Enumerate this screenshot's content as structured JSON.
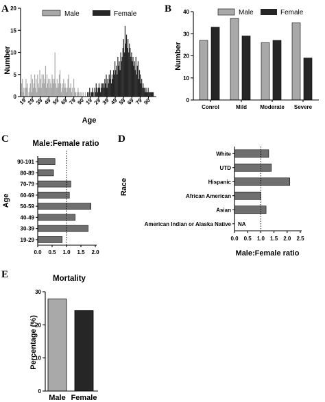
{
  "colors": {
    "male": "#a9a9a9",
    "female": "#262626",
    "ratio": "#6f6f6f"
  },
  "chart_data": [
    {
      "panel": "A",
      "type": "bar",
      "xlabel": "Age",
      "ylabel": "Number",
      "ylim": [
        0,
        20
      ],
      "yticks": [
        0,
        5,
        10,
        15,
        20
      ],
      "legend": "top",
      "x_ticks": [
        "19",
        "29",
        "39",
        "49",
        "59",
        "69",
        "79",
        "90",
        "19",
        "29",
        "39",
        "49",
        "59",
        "69",
        "79",
        "90"
      ],
      "series": [
        {
          "name": "Male",
          "ages": "19-90",
          "values": [
            1,
            3,
            4,
            1,
            2,
            0,
            2,
            4,
            2,
            3,
            0,
            1,
            2,
            3,
            5,
            1,
            4,
            2,
            3,
            5,
            2,
            4,
            1,
            5,
            3,
            2,
            6,
            4,
            2,
            5,
            3,
            5,
            3,
            4,
            7,
            2,
            5,
            3,
            4,
            2,
            4,
            3,
            2,
            5,
            4,
            3,
            4,
            10,
            3,
            2,
            4,
            2,
            3,
            5,
            6,
            3,
            1,
            2,
            3,
            4,
            2,
            3,
            2,
            1,
            2,
            4,
            5,
            2,
            2,
            3,
            1,
            2,
            0,
            4,
            2,
            1,
            1,
            0,
            1,
            2,
            1,
            0,
            1,
            0,
            1,
            0,
            1,
            0,
            0,
            1,
            0,
            0
          ]
        },
        {
          "name": "Female",
          "ages": "19-90",
          "values": [
            1,
            0,
            1,
            2,
            0,
            1,
            1,
            2,
            1,
            0,
            2,
            1,
            3,
            2,
            1,
            2,
            3,
            2,
            1,
            3,
            2,
            3,
            3,
            2,
            4,
            3,
            5,
            2,
            4,
            3,
            5,
            4,
            6,
            3,
            5,
            4,
            6,
            5,
            8,
            6,
            7,
            5,
            9,
            7,
            8,
            6,
            10,
            8,
            9,
            11,
            13,
            10,
            16,
            12,
            14,
            11,
            13,
            10,
            12,
            11,
            9,
            10,
            8,
            9,
            7,
            8,
            6,
            9,
            5,
            7,
            8,
            4,
            6,
            5,
            3,
            4,
            2,
            3,
            2,
            2,
            1,
            2,
            1,
            1,
            2,
            1,
            1,
            1,
            1,
            1,
            1,
            1
          ]
        }
      ]
    },
    {
      "panel": "B",
      "type": "bar",
      "xlabel": "",
      "ylabel": "Number",
      "ylim": [
        0,
        40
      ],
      "yticks": [
        0,
        10,
        20,
        30,
        40
      ],
      "legend": "top",
      "categories": [
        "Conrol",
        "Mild",
        "Moderate",
        "Severe"
      ],
      "series": [
        {
          "name": "Male",
          "values": [
            27,
            37,
            26,
            35
          ]
        },
        {
          "name": "Female",
          "values": [
            33,
            29,
            27,
            19
          ]
        }
      ]
    },
    {
      "panel": "C",
      "type": "bar",
      "orientation": "horizontal",
      "title": "Male:Female ratio",
      "xlabel": "",
      "ylabel": "Age",
      "xlim": [
        0,
        2
      ],
      "xticks": [
        "0.0",
        "0.5",
        "1.0",
        "1.5",
        "2.0"
      ],
      "reference_line": 1.0,
      "categories": [
        "90-101",
        "80-89",
        "70-79",
        "60-69",
        "50-59",
        "40-49",
        "30-39",
        "19-29"
      ],
      "values": [
        0.6,
        0.55,
        1.15,
        1.1,
        1.85,
        1.3,
        1.75,
        0.85
      ]
    },
    {
      "panel": "D",
      "type": "bar",
      "orientation": "horizontal",
      "xlabel": "Male:Female ratio",
      "ylabel": "Race",
      "xlim": [
        0,
        2.5
      ],
      "xticks": [
        "0.0",
        "0.5",
        "1.0",
        "1.5",
        "2.0",
        "2.5"
      ],
      "reference_line": 1.0,
      "categories": [
        "White",
        "UTD",
        "Hispanic",
        "African American",
        "Asian",
        "American Indian or Alaska Native"
      ],
      "values": [
        1.3,
        1.4,
        2.1,
        1.0,
        1.2,
        null
      ],
      "annotations": [
        "",
        "",
        "",
        "",
        "",
        "NA"
      ]
    },
    {
      "panel": "E",
      "type": "bar",
      "title": "Mortality",
      "xlabel": "",
      "ylabel": "Percentage (%)",
      "ylim": [
        0,
        30
      ],
      "yticks": [
        0,
        10,
        20,
        30
      ],
      "categories": [
        "Male",
        "Female"
      ],
      "values": [
        27.8,
        24.3
      ]
    }
  ],
  "panel_labels": [
    "A",
    "B",
    "C",
    "D",
    "E"
  ]
}
